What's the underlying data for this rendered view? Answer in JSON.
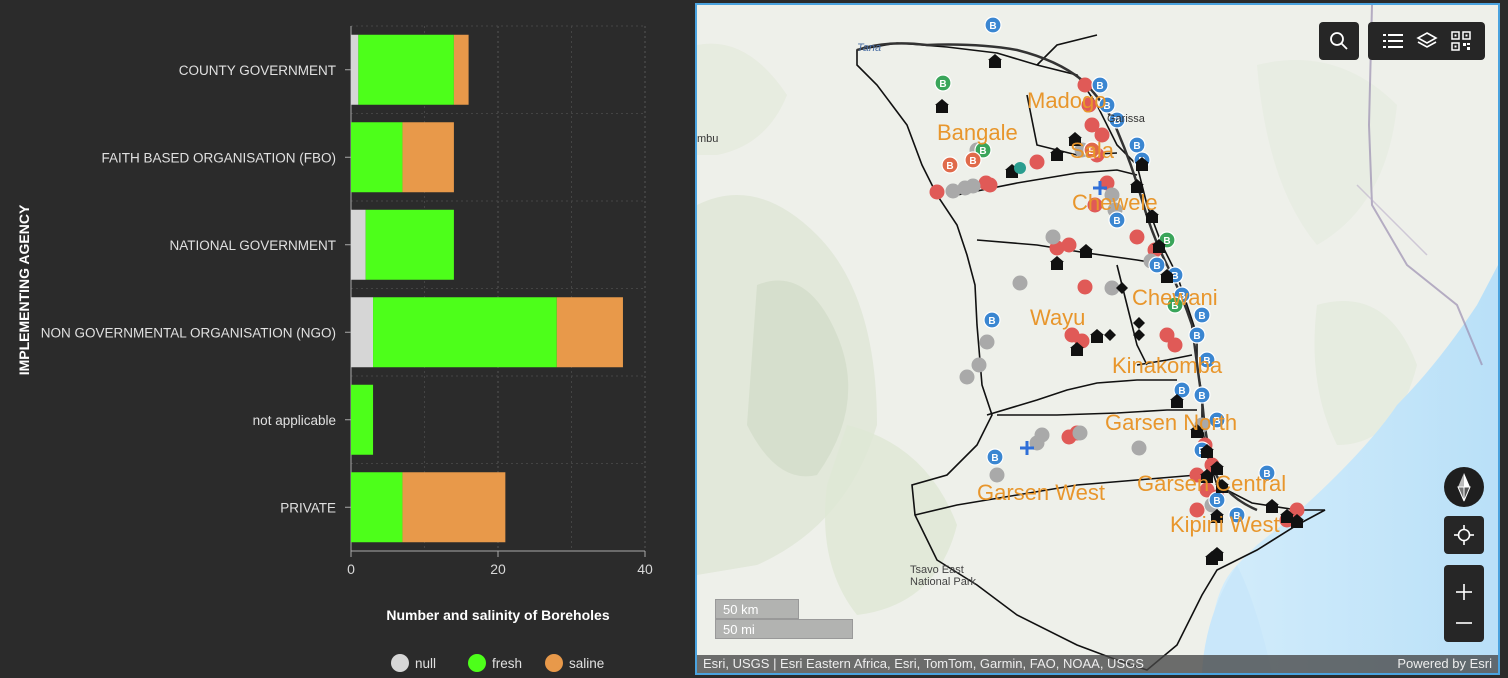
{
  "chart_data": {
    "type": "bar",
    "stacked": true,
    "orientation": "horizontal",
    "categories": [
      "COUNTY GOVERNMENT",
      "FAITH BASED ORGANISATION (FBO)",
      "NATIONAL GOVERNMENT",
      "NON GOVERNMENTAL ORGANISATION (NGO)",
      "not applicable",
      "PRIVATE"
    ],
    "series": [
      {
        "name": "null",
        "color": "#d6d6d6",
        "values": [
          1,
          0,
          2,
          3,
          0,
          0
        ]
      },
      {
        "name": "fresh",
        "color": "#4dff1a",
        "values": [
          13,
          7,
          12,
          25,
          3,
          7
        ]
      },
      {
        "name": "saline",
        "color": "#e8994a",
        "values": [
          2,
          7,
          0,
          9,
          0,
          14
        ]
      }
    ],
    "xlabel": "Number and salinity of Boreholes",
    "ylabel": "IMPLEMENTING AGENCY",
    "xlim": [
      0,
      40
    ],
    "xticks": [
      0,
      20,
      40
    ],
    "grid": true,
    "legend_position": "bottom"
  },
  "map": {
    "labels": [
      "Madogo",
      "Bangale",
      "Sala",
      "Chewele",
      "Chewani",
      "Wayu",
      "Kinakomba",
      "Garsen North",
      "Garsen West",
      "Garsen Central",
      "Kipini West"
    ],
    "small_labels": [
      "Tana",
      "Garissa",
      "mbu",
      "Tsavo East",
      "National Park"
    ],
    "scale": {
      "km": "50 km",
      "mi": "50 mi"
    },
    "attribution": "Esri, USGS | Esri Eastern Africa, Esri, TomTom, Garmin, FAO, NOAA, USGS",
    "powered_by": "Powered by Esri",
    "colors": {
      "label": "#e8962c",
      "boundary": "#111111",
      "water": "#c4e6fa",
      "land": "#eff1ec",
      "hills": "#d8e2cf"
    },
    "buttons": [
      "search-icon",
      "list-icon",
      "layers-icon",
      "qr-code-icon",
      "compass-icon",
      "locate-icon",
      "zoom-in-icon",
      "zoom-out-icon"
    ]
  }
}
